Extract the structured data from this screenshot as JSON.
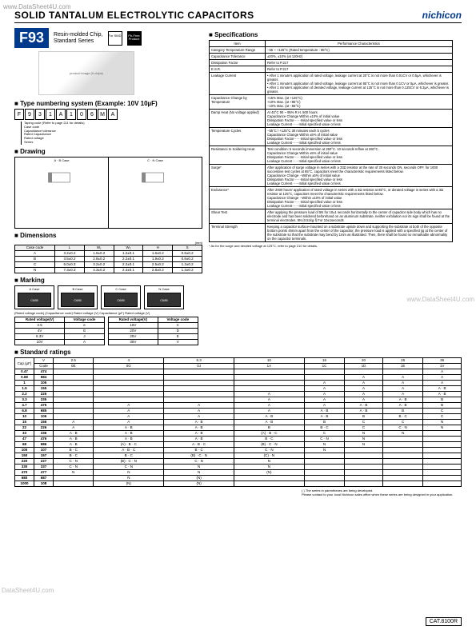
{
  "watermarks": {
    "tl": "www.DataSheet4U.com",
    "mr": "www.DataSheet4U.com",
    "bl": "DataSheet4U.com"
  },
  "header": {
    "title": "SOLID TANTALUM ELECTROLYTIC CAPACITORS",
    "brand": "nichicon"
  },
  "series": {
    "code": "F93",
    "desc1": "Resin-molded Chip,",
    "desc2": "Standard Series",
    "badge1": "For SMD",
    "badge2": "Pb-Free Product"
  },
  "productImg": "product image (6 chips)",
  "typeNum": {
    "heading": "Type numbering system (Example: 10V 10µF)",
    "cells": [
      "F",
      "9",
      "3",
      "1",
      "A",
      "1",
      "0",
      "6",
      "M",
      "A"
    ],
    "labels": [
      "Taping code (Refer to page 211 for details)",
      "Case code",
      "Capacitance tolerance",
      "Rated Capacitance",
      "Rated voltage",
      "Series"
    ]
  },
  "drawing": {
    "heading": "Drawing",
    "left": "A · B Case",
    "right": "C · N Case"
  },
  "dimensions": {
    "heading": "Dimensions",
    "unit": "(mm)",
    "cols": [
      "Case code",
      "L",
      "W₁",
      "W₂",
      "H",
      "S"
    ],
    "rows": [
      [
        "A",
        "3.2±0.2",
        "1.6±0.2",
        "1.2±0.1",
        "1.6±0.2",
        "0.8±0.2"
      ],
      [
        "B",
        "3.5±0.2",
        "2.8±0.2",
        "2.2±0.1",
        "1.9±0.2",
        "0.8±0.2"
      ],
      [
        "C",
        "6.0±0.3",
        "3.2±0.2",
        "2.2±0.1",
        "2.5±0.2",
        "1.3±0.2"
      ],
      [
        "N",
        "7.3±0.3",
        "4.3±0.2",
        "2.4±0.1",
        "2.8±0.2",
        "1.3±0.2"
      ]
    ]
  },
  "marking": {
    "heading": "Marking",
    "cases": [
      "A Case",
      "B Case",
      "C Case",
      "N Case"
    ],
    "legend": "(Rated voltage code)  (Capacitance code)   Rated voltage (V)   Capacitance (µF)   Rated voltage (V)",
    "tbl1": {
      "cols": [
        "Rated voltage(V)",
        "Voltage code"
      ],
      "rows": [
        [
          "2.5",
          "e"
        ],
        [
          "4V",
          "G"
        ],
        [
          "6.3V",
          "J"
        ],
        [
          "10V",
          "A"
        ]
      ]
    },
    "tbl2": {
      "cols": [
        "Rated voltage(V)",
        "Voltage code"
      ],
      "rows": [
        [
          "16V",
          "C"
        ],
        [
          "20V",
          "D"
        ],
        [
          "25V",
          "E"
        ],
        [
          "35V",
          "V"
        ]
      ]
    }
  },
  "specs": {
    "heading": "Specifications",
    "cols": [
      "Item",
      "Performance Characteristics"
    ],
    "rows": [
      [
        "Category Temperature Range",
        "−55 ~ +125°C (Rated temperature : 85°C)"
      ],
      [
        "Capacitance Tolerance",
        "±20%, ±10% (at 120Hz)"
      ],
      [
        "Dissipation Factor",
        "Refer to P.217"
      ],
      [
        "E.S.R.",
        "Refer to P.217"
      ],
      [
        "Leakage Current",
        "• After 1 minute's application of rated voltage, leakage current at 20°C is not more than 0.01CV or 0.5µA, whichever is greater.\n• After 1 minute's application of rated voltage, leakage current at 85°C is not more than 0.1CV or 5µA, whichever is greater.\n• After 1 minute's application of derated voltage, leakage current at 125°C is not more than 0.125CV or 6.3µA, whichever is greater."
      ],
      [
        "Capacitance Change by Temperature",
        "+15% Max. (at +125°C)\n+10% Max. (at +85°C)\n−10% Max. (at −55°C)"
      ],
      [
        "Damp Heat (No voltage applied)",
        "At 40°C 90 ~ 95% R.H. 500 hours\nCapacitance Change Within ±10% of initial value\nDissipation Factor······Initial specified value or less\nLeakage Current······Initial specified value or less"
      ],
      [
        "Temperature Cycles",
        "−55°C / +125°C 30 minutes each 5 cycles\nCapacitance Change Within ±5% of initial value\nDissipation Factor······Initial specified value or less\nLeakage Current······Initial specified value or less"
      ],
      [
        "Resistance to Soldering Heat",
        "Test condition: 5 seconds immersion at 260°C. 10 seconds reflow at 260°C.\nCapacitance Change Within ±5% of initial value\nDissipation Factor······Initial specified value or less\nLeakage Current······Initial specified value or less"
      ],
      [
        "Surge*",
        "After application of surge voltage in series with a 33Ω resistor at the rate of 30 seconds ON, seconds OFF, for 1000 successive test cycles at 85°C, capacitors meet the characteristic requirements listed below.\nCapacitance Change···Within ±5% of initial value\nDissipation Factor······Initial specified value or less\nLeakage Current······Initial specified value or less"
      ],
      [
        "Endurance*",
        "After 2000 hours' application of rated voltage in series with a 3Ω resistor at 85°C, or derated voltage in series with a 3Ω resistor at 125°C, capacitors meet the characteristic requirements listed below.\nCapacitance Change···Within ±10% of initial value\nDissipation Factor······Initial specified value or less\nLeakage Current······Initial specified value or less"
      ],
      [
        "Shear Test",
        "After applying the pressure load of 5N for 10±1 seconds horizontally to the center of capacitor side body which has no electrode and has been soldered beforehand on an aluminum substrate, neither exfoliation nor its sign shall be found at the terminal electrodes. 5N (0.51kg·f) For 10±1seconds"
      ],
      [
        "Terminal Strength",
        "Keeping a capacitor surface-mounted on a substrate upside down and supporting the substrate at both of the opposite bottom points 45mm apart from the center of the capacitor, the pressure load is applied with a specified jig at the center of the substrate so that the substrate may bend by 1mm as illustrated. Then, there shall be found no remarkable abnormality on the capacitor terminals."
      ]
    ],
    "note": "* As for the surge and derated voltage at 125°C, refer to page 210 for details."
  },
  "ratings": {
    "heading": "Standard ratings",
    "vHeader": "V",
    "capHeader": "Cap.(µF)",
    "codeHeader": "Code",
    "voltages": [
      "2.5",
      "4",
      "6.3",
      "10",
      "16",
      "20",
      "25",
      "35"
    ],
    "vcodes": [
      "0E",
      "0G",
      "0J",
      "1A",
      "1C",
      "1D",
      "1E",
      "1V"
    ],
    "rows": [
      [
        "0.47",
        "474",
        "",
        "",
        "",
        "",
        "",
        "",
        "",
        "A"
      ],
      [
        "0.68",
        "684",
        "",
        "",
        "",
        "",
        "",
        "A",
        "A",
        "A"
      ],
      [
        "1",
        "105",
        "",
        "",
        "",
        "",
        "A",
        "A",
        "A",
        "A"
      ],
      [
        "1.5",
        "155",
        "",
        "",
        "",
        "",
        "A",
        "A",
        "A",
        "A · B"
      ],
      [
        "2.2",
        "225",
        "",
        "",
        "",
        "A",
        "A",
        "A",
        "A",
        "A · B"
      ],
      [
        "3.3",
        "335",
        "",
        "",
        "",
        "A",
        "A",
        "A",
        "A · B",
        "B"
      ],
      [
        "4.7",
        "475",
        "",
        "A",
        "A",
        "A",
        "A",
        "A · B",
        "A · B",
        "B"
      ],
      [
        "6.8",
        "685",
        "",
        "A",
        "A",
        "A",
        "A · B",
        "A · B",
        "B",
        "C"
      ],
      [
        "10",
        "106",
        "",
        "A",
        "A",
        "A · B",
        "A · B",
        "B",
        "B · C",
        "C"
      ],
      [
        "15",
        "156",
        "A",
        "A",
        "A · B",
        "A · B",
        "B",
        "C",
        "C",
        "N"
      ],
      [
        "22",
        "226",
        "A",
        "A · B",
        "A · B",
        "B",
        "B · C",
        "C",
        "C · N",
        "N"
      ],
      [
        "33",
        "336",
        "A · B",
        "A · B",
        "A · B",
        "(A) · B · C",
        "C",
        "N",
        "N",
        ""
      ],
      [
        "47",
        "476",
        "A · B",
        "A · B",
        "A · B",
        "B · C",
        "C · N",
        "N",
        "",
        ""
      ],
      [
        "68",
        "686",
        "A · B",
        "(A) · B · C",
        "A · B · C",
        "(B) · C · N",
        "N",
        "N",
        "",
        ""
      ],
      [
        "100",
        "107",
        "B · C",
        "A · B · C",
        "B · C",
        "C · N",
        "N",
        "",
        "",
        ""
      ],
      [
        "150",
        "157",
        "B · C",
        "B · C",
        "(B) · C · N",
        "(C) · N",
        "",
        "",
        "",
        ""
      ],
      [
        "220",
        "227",
        "C · N",
        "(B) · C · N",
        "C · N",
        "N",
        "",
        "",
        "",
        ""
      ],
      [
        "330",
        "337",
        "C · N",
        "C · N",
        "N",
        "N",
        "",
        "",
        "",
        ""
      ],
      [
        "470",
        "477",
        "N",
        "N",
        "N",
        "(N)",
        "",
        "",
        "",
        ""
      ],
      [
        "680",
        "687",
        "",
        "N",
        "(N)",
        "",
        "",
        "",
        "",
        ""
      ],
      [
        "1000",
        "108",
        "",
        "(N)",
        "(N)",
        "",
        "",
        "",
        "",
        ""
      ]
    ],
    "note1": "( ) The series in parentheses are being developed.",
    "note2": "Please contact to your local Nichicon sales office when these series are being designed in your application."
  },
  "catalog": "CAT.8100R"
}
